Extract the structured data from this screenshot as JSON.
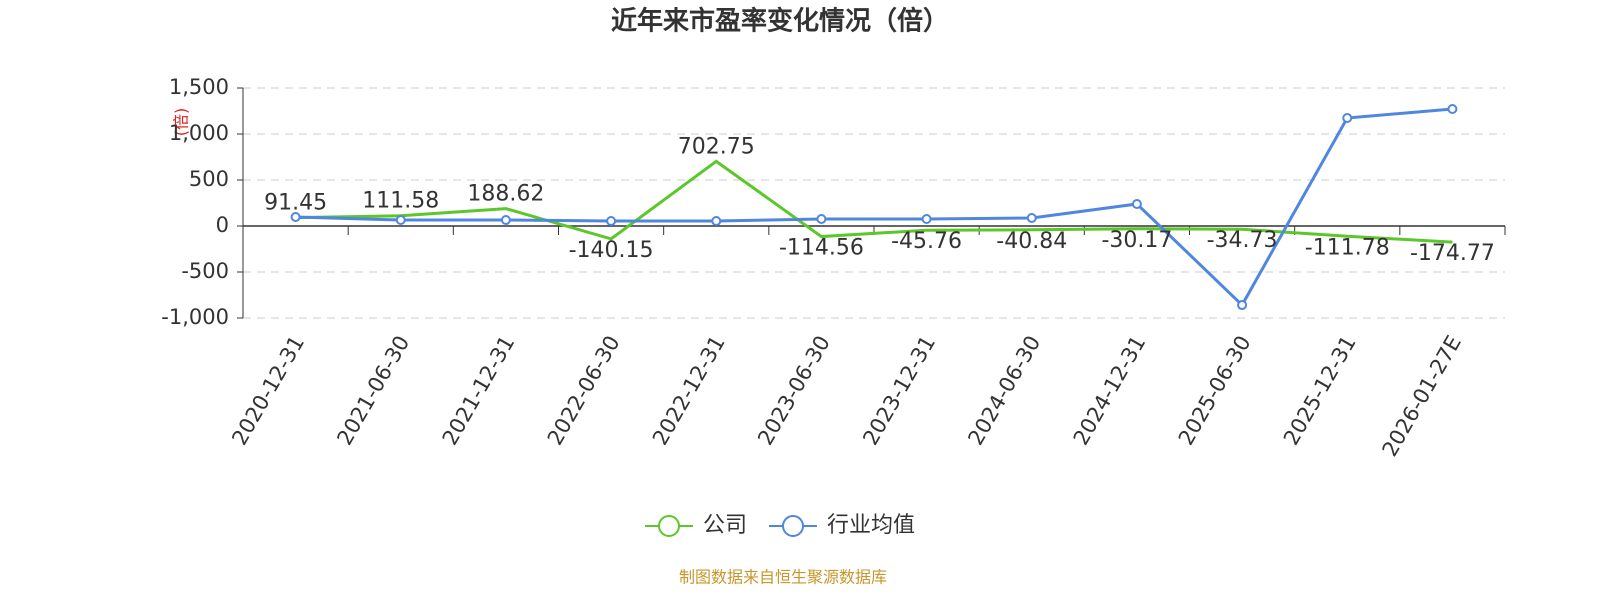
{
  "chart_data": {
    "type": "line",
    "title": "近年来市盈率变化情况（倍）",
    "y_label": "(倍)",
    "categories": [
      "2020-12-31",
      "2021-06-30",
      "2021-12-31",
      "2022-06-30",
      "2022-12-31",
      "2023-06-30",
      "2023-12-31",
      "2024-06-30",
      "2024-12-31",
      "2025-06-30",
      "2025-12-31",
      "2026-01-27E"
    ],
    "series": [
      {
        "name": "公司",
        "color": "#5cc72a",
        "values": [
          91.45,
          111.58,
          188.62,
          -140.15,
          702.75,
          -114.56,
          -45.76,
          -40.84,
          -30.17,
          -34.73,
          -111.78,
          -174.77
        ]
      },
      {
        "name": "行业均值",
        "color": "#4f86e0",
        "values": [
          98,
          65,
          65,
          54,
          54,
          76,
          76,
          87,
          239,
          -859,
          1174,
          1272
        ]
      }
    ],
    "ylim": [
      -1000,
      1500
    ],
    "yticks": [
      {
        "value": 1500,
        "label": "1,500"
      },
      {
        "value": 1000,
        "label": "1,000"
      },
      500,
      0,
      -500,
      {
        "value": -1000,
        "label": "-1,000"
      }
    ],
    "grid": true
  },
  "source": "制图数据来自恒生聚源数据库"
}
